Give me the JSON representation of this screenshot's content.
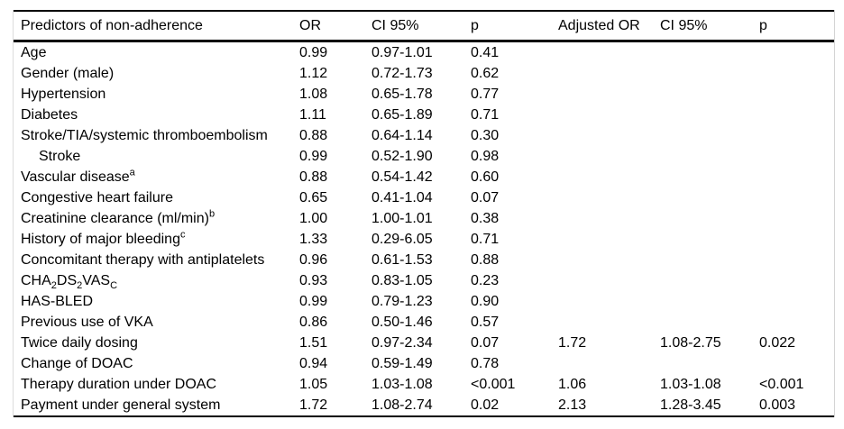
{
  "colors": {
    "background": "#ffffff",
    "text": "#000000",
    "rule": "#000000",
    "edge_line": "#d8d8d8"
  },
  "table": {
    "columns": [
      "Predictors of non-adherence",
      "OR",
      "CI 95%",
      "p",
      "Adjusted OR",
      "CI 95%",
      "p"
    ],
    "rows": [
      {
        "label": [
          {
            "t": "Age"
          }
        ],
        "indent": false,
        "or": "0.99",
        "ci": "0.97-1.01",
        "p": "0.41",
        "adj_or": "",
        "adj_ci": "",
        "adj_p": ""
      },
      {
        "label": [
          {
            "t": "Gender (male)"
          }
        ],
        "indent": false,
        "or": "1.12",
        "ci": "0.72-1.73",
        "p": "0.62",
        "adj_or": "",
        "adj_ci": "",
        "adj_p": ""
      },
      {
        "label": [
          {
            "t": "Hypertension"
          }
        ],
        "indent": false,
        "or": "1.08",
        "ci": "0.65-1.78",
        "p": "0.77",
        "adj_or": "",
        "adj_ci": "",
        "adj_p": ""
      },
      {
        "label": [
          {
            "t": "Diabetes"
          }
        ],
        "indent": false,
        "or": "1.11",
        "ci": "0.65-1.89",
        "p": "0.71",
        "adj_or": "",
        "adj_ci": "",
        "adj_p": ""
      },
      {
        "label": [
          {
            "t": "Stroke/TIA/systemic thromboembolism"
          }
        ],
        "indent": false,
        "or": "0.88",
        "ci": "0.64-1.14",
        "p": "0.30",
        "adj_or": "",
        "adj_ci": "",
        "adj_p": ""
      },
      {
        "label": [
          {
            "t": "Stroke"
          }
        ],
        "indent": true,
        "or": "0.99",
        "ci": "0.52-1.90",
        "p": "0.98",
        "adj_or": "",
        "adj_ci": "",
        "adj_p": ""
      },
      {
        "label": [
          {
            "t": "Vascular disease"
          },
          {
            "t": "a",
            "style": "sup"
          }
        ],
        "indent": false,
        "or": "0.88",
        "ci": "0.54-1.42",
        "p": "0.60",
        "adj_or": "",
        "adj_ci": "",
        "adj_p": ""
      },
      {
        "label": [
          {
            "t": "Congestive heart failure"
          }
        ],
        "indent": false,
        "or": "0.65",
        "ci": "0.41-1.04",
        "p": "0.07",
        "adj_or": "",
        "adj_ci": "",
        "adj_p": ""
      },
      {
        "label": [
          {
            "t": "Creatinine clearance (ml/min)"
          },
          {
            "t": "b",
            "style": "sup"
          }
        ],
        "indent": false,
        "or": "1.00",
        "ci": "1.00-1.01",
        "p": "0.38",
        "adj_or": "",
        "adj_ci": "",
        "adj_p": ""
      },
      {
        "label": [
          {
            "t": "History of major bleeding"
          },
          {
            "t": "c",
            "style": "sup"
          }
        ],
        "indent": false,
        "or": "1.33",
        "ci": "0.29-6.05",
        "p": "0.71",
        "adj_or": "",
        "adj_ci": "",
        "adj_p": ""
      },
      {
        "label": [
          {
            "t": "Concomitant therapy with antiplatelets"
          }
        ],
        "indent": false,
        "or": "0.96",
        "ci": "0.61-1.53",
        "p": "0.88",
        "adj_or": "",
        "adj_ci": "",
        "adj_p": ""
      },
      {
        "label": [
          {
            "t": "CHA"
          },
          {
            "t": "2",
            "style": "sub"
          },
          {
            "t": "DS"
          },
          {
            "t": "2",
            "style": "sub"
          },
          {
            "t": "VAS"
          },
          {
            "t": "C",
            "style": "sub"
          }
        ],
        "indent": false,
        "or": "0.93",
        "ci": "0.83-1.05",
        "p": "0.23",
        "adj_or": "",
        "adj_ci": "",
        "adj_p": ""
      },
      {
        "label": [
          {
            "t": "HAS-BLED"
          }
        ],
        "indent": false,
        "or": "0.99",
        "ci": "0.79-1.23",
        "p": "0.90",
        "adj_or": "",
        "adj_ci": "",
        "adj_p": ""
      },
      {
        "label": [
          {
            "t": "Previous use of VKA"
          }
        ],
        "indent": false,
        "or": "0.86",
        "ci": "0.50-1.46",
        "p": "0.57",
        "adj_or": "",
        "adj_ci": "",
        "adj_p": ""
      },
      {
        "label": [
          {
            "t": "Twice daily dosing"
          }
        ],
        "indent": false,
        "or": "1.51",
        "ci": "0.97-2.34",
        "p": "0.07",
        "adj_or": "1.72",
        "adj_ci": "1.08-2.75",
        "adj_p": "0.022"
      },
      {
        "label": [
          {
            "t": "Change of DOAC"
          }
        ],
        "indent": false,
        "or": "0.94",
        "ci": "0.59-1.49",
        "p": "0.78",
        "adj_or": "",
        "adj_ci": "",
        "adj_p": ""
      },
      {
        "label": [
          {
            "t": "Therapy duration under DOAC"
          }
        ],
        "indent": false,
        "or": "1.05",
        "ci": "1.03-1.08",
        "p": "<0.001",
        "adj_or": "1.06",
        "adj_ci": "1.03-1.08",
        "adj_p": "<0.001"
      },
      {
        "label": [
          {
            "t": "Payment under general system"
          }
        ],
        "indent": false,
        "or": "1.72",
        "ci": "1.08-2.74",
        "p": "0.02",
        "adj_or": "2.13",
        "adj_ci": "1.28-3.45",
        "adj_p": "0.003"
      }
    ]
  }
}
